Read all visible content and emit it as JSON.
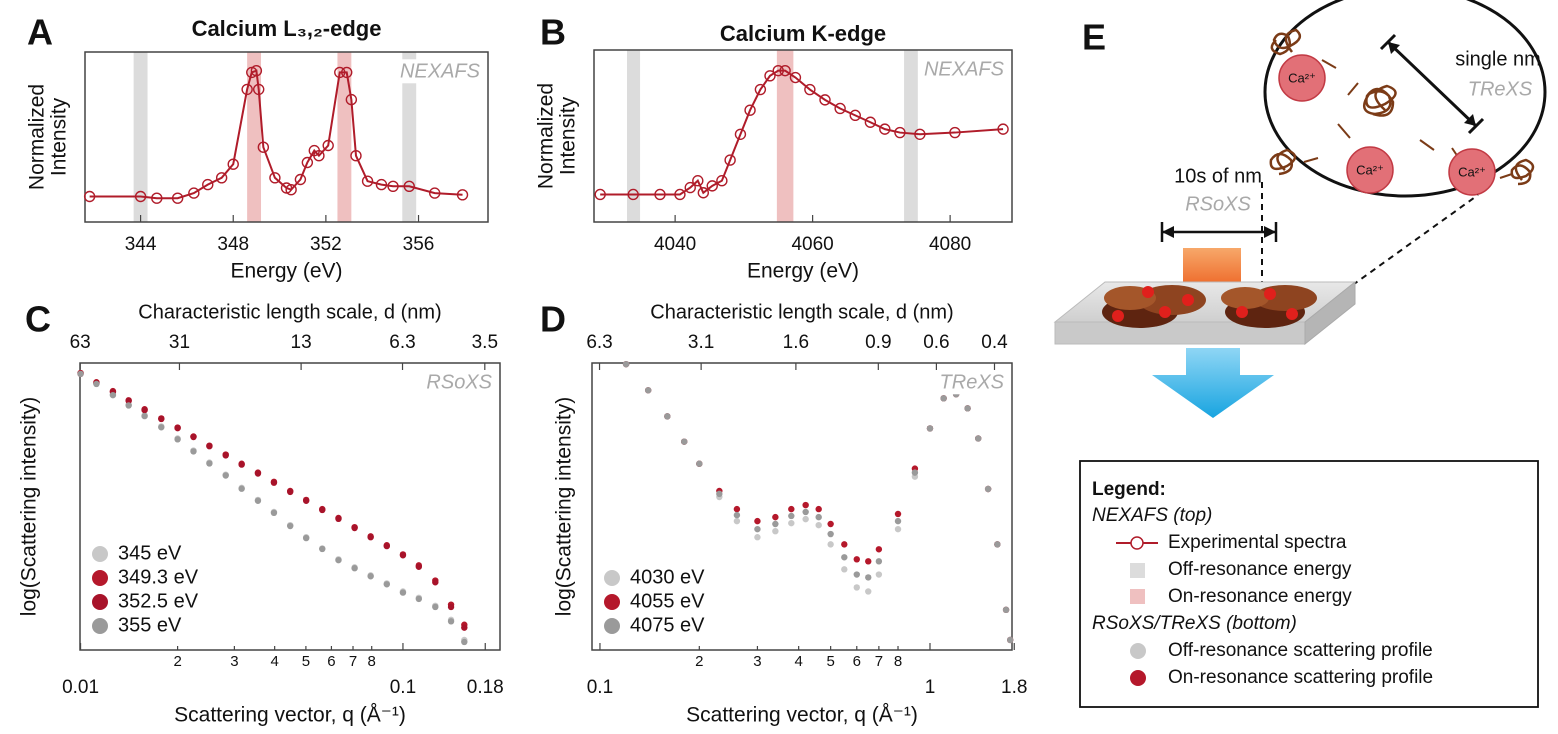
{
  "chart_data": [
    {
      "panel": "A",
      "type": "line",
      "title": "Calcium L₃,₂-edge",
      "xlabel": "Energy (eV)",
      "ylabel": [
        "Normalized",
        "Intensity"
      ],
      "annotation": "NEXAFS",
      "color": "#b01c2a",
      "x": [
        341.8,
        344.0,
        344.7,
        345.6,
        346.3,
        346.9,
        347.5,
        348.0,
        348.6,
        348.8,
        349.0,
        349.1,
        349.3,
        349.8,
        350.3,
        350.5,
        350.9,
        351.2,
        351.5,
        351.7,
        352.1,
        352.6,
        352.9,
        353.1,
        353.3,
        353.8,
        354.4,
        354.9,
        355.6,
        356.7,
        357.9
      ],
      "values": [
        0.15,
        0.15,
        0.14,
        0.14,
        0.17,
        0.22,
        0.26,
        0.34,
        0.78,
        0.88,
        0.89,
        0.78,
        0.44,
        0.26,
        0.2,
        0.19,
        0.25,
        0.35,
        0.42,
        0.39,
        0.45,
        0.88,
        0.88,
        0.72,
        0.39,
        0.24,
        0.22,
        0.21,
        0.21,
        0.17,
        0.16
      ],
      "xlim": [
        341.6,
        359.0
      ],
      "xticks": [
        344,
        348,
        352,
        356
      ],
      "ylim": [
        0,
        1
      ],
      "highlights": [
        {
          "x0": 343.7,
          "x1": 344.3,
          "color": "#dcdcdc"
        },
        {
          "x0": 348.6,
          "x1": 349.2,
          "color": "#efc0c0"
        },
        {
          "x0": 352.5,
          "x1": 353.1,
          "color": "#efc0c0"
        },
        {
          "x0": 355.3,
          "x1": 355.9,
          "color": "#dcdcdc"
        }
      ]
    },
    {
      "panel": "B",
      "type": "line",
      "title": "Calcium K-edge",
      "xlabel": "Energy (eV)",
      "ylabel": [
        "Normalized",
        "Intensity"
      ],
      "annotation": "NEXAFS",
      "color": "#b01c2a",
      "x": [
        4029.1,
        4033.9,
        4037.8,
        4040.7,
        4042.2,
        4043.3,
        4044.1,
        4045.4,
        4046.8,
        4048.0,
        4049.5,
        4050.9,
        4052.4,
        4053.8,
        4055.0,
        4056.0,
        4057.5,
        4059.6,
        4061.8,
        4064.0,
        4066.2,
        4068.4,
        4070.5,
        4072.7,
        4075.6,
        4080.7,
        4087.7
      ],
      "values": [
        0.16,
        0.16,
        0.16,
        0.16,
        0.2,
        0.24,
        0.17,
        0.21,
        0.24,
        0.36,
        0.51,
        0.65,
        0.77,
        0.85,
        0.88,
        0.88,
        0.84,
        0.77,
        0.71,
        0.66,
        0.62,
        0.58,
        0.54,
        0.52,
        0.51,
        0.52,
        0.54
      ],
      "xlim": [
        4028.2,
        4089.0
      ],
      "xticks": [
        4040,
        4060,
        4080
      ],
      "ylim": [
        0,
        1
      ],
      "highlights": [
        {
          "x0": 4033.0,
          "x1": 4034.9,
          "color": "#dcdcdc"
        },
        {
          "x0": 4054.8,
          "x1": 4057.2,
          "color": "#efc0c0"
        },
        {
          "x0": 4073.3,
          "x1": 4075.3,
          "color": "#dcdcdc"
        }
      ]
    },
    {
      "panel": "C",
      "type": "scatter",
      "xlabel": "Scattering vector, q (Å⁻¹)",
      "ylabel": "log(Scattering intensity)",
      "x2label": "Characteristic length scale, d (nm)",
      "annotation": "RSoXS",
      "xscale": "log",
      "xlim": [
        0.00996,
        0.2
      ],
      "xticks": [
        0.01,
        {
          "value": 0.02,
          "label": "2"
        },
        {
          "value": 0.03,
          "label": "3"
        },
        {
          "value": 0.04,
          "label": "4"
        },
        {
          "value": 0.05,
          "label": "5"
        },
        {
          "value": 0.06,
          "label": "6"
        },
        {
          "value": 0.07,
          "label": "7"
        },
        {
          "value": 0.08,
          "label": "8"
        },
        0.1,
        0.18
      ],
      "x2scale": "log",
      "x2lim": [
        63.08,
        3.14
      ],
      "x2ticks": [
        63,
        31,
        13,
        6.3,
        3.5
      ],
      "ylim": [
        0,
        1
      ],
      "legend": "lower left",
      "x": [
        0.01,
        0.0112,
        0.0126,
        0.0141,
        0.0158,
        0.0178,
        0.02,
        0.0224,
        0.0251,
        0.0282,
        0.0316,
        0.0355,
        0.0398,
        0.0447,
        0.0501,
        0.0562,
        0.0631,
        0.0708,
        0.0794,
        0.0891,
        0.1,
        0.112,
        0.126,
        0.141,
        0.155
      ],
      "series": [
        {
          "name": "345 eV",
          "color": "#c8c8c8",
          "values": [
            0.965,
            0.93,
            0.891,
            0.856,
            0.818,
            0.779,
            0.737,
            0.695,
            0.653,
            0.611,
            0.565,
            0.523,
            0.481,
            0.435,
            0.393,
            0.354,
            0.316,
            0.288,
            0.26,
            0.232,
            0.204,
            0.182,
            0.154,
            0.105,
            0.035
          ]
        },
        {
          "name": "349.3 eV",
          "color": "#b5182b",
          "values": [
            0.965,
            0.933,
            0.902,
            0.87,
            0.839,
            0.807,
            0.775,
            0.744,
            0.712,
            0.681,
            0.649,
            0.618,
            0.586,
            0.554,
            0.523,
            0.491,
            0.46,
            0.428,
            0.396,
            0.365,
            0.333,
            0.295,
            0.242,
            0.158,
            0.088
          ]
        },
        {
          "name": "352.5 eV",
          "color": "#a8132a",
          "values": [
            0.962,
            0.93,
            0.899,
            0.868,
            0.836,
            0.805,
            0.773,
            0.742,
            0.71,
            0.678,
            0.646,
            0.615,
            0.583,
            0.551,
            0.52,
            0.488,
            0.457,
            0.425,
            0.393,
            0.362,
            0.33,
            0.29,
            0.236,
            0.15,
            0.078
          ]
        },
        {
          "name": "355 eV",
          "color": "#9a9a9a",
          "values": [
            0.962,
            0.927,
            0.888,
            0.852,
            0.815,
            0.776,
            0.734,
            0.692,
            0.65,
            0.608,
            0.562,
            0.52,
            0.478,
            0.432,
            0.39,
            0.352,
            0.313,
            0.285,
            0.257,
            0.229,
            0.2,
            0.178,
            0.15,
            0.1,
            0.028
          ]
        }
      ]
    },
    {
      "panel": "D",
      "type": "scatter",
      "xlabel": "Scattering vector, q (Å⁻¹)",
      "ylabel": "log(Scattering intensity)",
      "x2label": "Characteristic length scale, d (nm)",
      "annotation": "TReXS",
      "xscale": "log",
      "xlim": [
        0.0946,
        1.772
      ],
      "xticks": [
        0.1,
        {
          "value": 0.2,
          "label": "2"
        },
        {
          "value": 0.3,
          "label": "3"
        },
        {
          "value": 0.4,
          "label": "4"
        },
        {
          "value": 0.5,
          "label": "5"
        },
        {
          "value": 0.6,
          "label": "6"
        },
        {
          "value": 0.7,
          "label": "7"
        },
        {
          "value": 0.8,
          "label": "8"
        },
        1,
        1.8
      ],
      "x2scale": "log",
      "x2lim": [
        6.64,
        0.354
      ],
      "x2ticks": [
        6.3,
        3.1,
        1.6,
        0.9,
        0.6,
        0.4
      ],
      "ylim": [
        0,
        1
      ],
      "legend": "lower left",
      "x": [
        0.12,
        0.14,
        0.16,
        0.18,
        0.2,
        0.23,
        0.26,
        0.3,
        0.34,
        0.38,
        0.42,
        0.46,
        0.5,
        0.55,
        0.6,
        0.65,
        0.7,
        0.8,
        0.9,
        1.0,
        1.1,
        1.2,
        1.3,
        1.4,
        1.5,
        1.6,
        1.7,
        1.75
      ],
      "series": [
        {
          "name": "4030 eV",
          "color": "#c8c8c8",
          "values": [
            0.996,
            0.905,
            0.814,
            0.726,
            0.649,
            0.533,
            0.449,
            0.393,
            0.414,
            0.442,
            0.456,
            0.435,
            0.368,
            0.281,
            0.218,
            0.204,
            0.263,
            0.421,
            0.604,
            0.772,
            0.877,
            0.891,
            0.842,
            0.737,
            0.561,
            0.368,
            0.14,
            0.035
          ]
        },
        {
          "name": "4055 eV",
          "color": "#b5182b",
          "values": [
            0.996,
            0.905,
            0.814,
            0.726,
            0.649,
            0.554,
            0.491,
            0.449,
            0.463,
            0.491,
            0.505,
            0.491,
            0.439,
            0.368,
            0.316,
            0.309,
            0.351,
            0.474,
            0.632,
            0.772,
            0.877,
            0.891,
            0.842,
            0.737,
            0.561,
            0.368,
            0.14,
            0.035
          ]
        },
        {
          "name": "4075 eV",
          "color": "#9a9a9a",
          "values": [
            0.996,
            0.905,
            0.814,
            0.726,
            0.649,
            0.544,
            0.47,
            0.421,
            0.439,
            0.467,
            0.481,
            0.463,
            0.404,
            0.323,
            0.263,
            0.253,
            0.309,
            0.449,
            0.618,
            0.772,
            0.877,
            0.891,
            0.842,
            0.737,
            0.561,
            0.368,
            0.14,
            0.035
          ]
        }
      ]
    }
  ],
  "diagram": {
    "panel": "E",
    "scale_labels": {
      "single_nm": "single nm",
      "trexs": "TReXS",
      "tens_nm": "10s of nm",
      "rsoxs": "RSoXS"
    },
    "ions": [
      "Ca²⁺",
      "Ca²⁺",
      "Ca²⁺"
    ],
    "legend": {
      "title": "Legend:",
      "nexafs_heading": "NEXAFS (top)",
      "items_top": [
        "Experimental spectra",
        "Off-resonance energy",
        "On-resonance energy"
      ],
      "scattering_heading": "RSoXS/TReXS (bottom)",
      "items_bottom": [
        "Off-resonance scattering profile",
        "On-resonance scattering profile"
      ]
    }
  }
}
